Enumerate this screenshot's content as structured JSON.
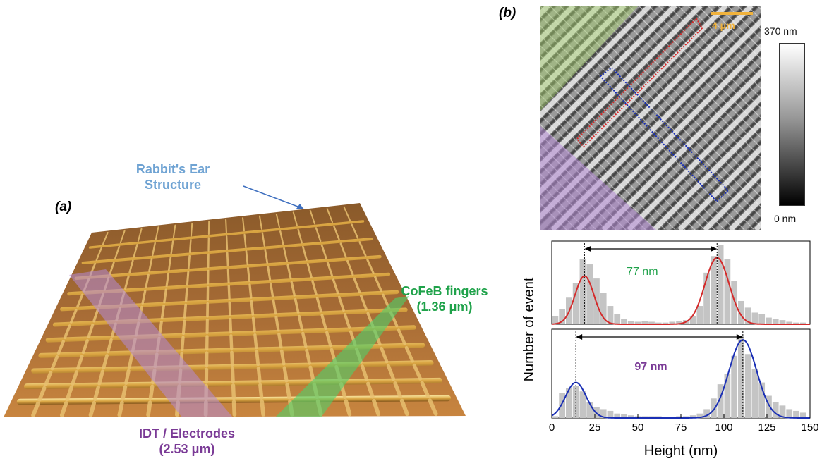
{
  "panel_a": {
    "label": "(a)",
    "annotations": {
      "rabbit_line1": "Rabbit's Ear",
      "rabbit_line2": "Structure",
      "cofeb_line1": "CoFeB fingers",
      "cofeb_line2": "(1.36 μm)",
      "idt_line1": "IDT / Electrodes",
      "idt_line2": "(2.53 μm)"
    }
  },
  "panel_b": {
    "label": "(b)",
    "scale_bar": "4 μm",
    "colorbar": {
      "max": "370 nm",
      "min": "0 nm"
    }
  },
  "colors": {
    "red_fit": "#d42a2a",
    "blue_fit": "#1a2fb5",
    "bars": "#c4c4c4",
    "annot_green": "#1fa24a",
    "annot_purple": "#7a3a96"
  },
  "chart_data": [
    {
      "type": "bar",
      "panel": "top histogram",
      "xlim": [
        0,
        150
      ],
      "bin_width": 4,
      "x": [
        2,
        6,
        10,
        14,
        18,
        22,
        26,
        30,
        34,
        38,
        42,
        46,
        50,
        54,
        58,
        62,
        66,
        70,
        74,
        78,
        82,
        86,
        90,
        94,
        98,
        102,
        106,
        110,
        114,
        118,
        122,
        126,
        130,
        134,
        138,
        142,
        146
      ],
      "values": [
        0.1,
        0.18,
        0.32,
        0.5,
        0.78,
        0.72,
        0.55,
        0.38,
        0.22,
        0.12,
        0.06,
        0.04,
        0.03,
        0.04,
        0.03,
        0.02,
        0.02,
        0.03,
        0.04,
        0.05,
        0.1,
        0.22,
        0.62,
        0.82,
        0.95,
        0.78,
        0.52,
        0.28,
        0.2,
        0.14,
        0.12,
        0.08,
        0.06,
        0.05,
        0.03,
        0.02,
        0.02
      ],
      "fit": {
        "color": "red",
        "peaks": [
          {
            "center": 19,
            "height": 0.58,
            "sigma": 5.5
          },
          {
            "center": 96,
            "height": 0.8,
            "sigma": 7
          }
        ]
      },
      "annotation": "77 nm",
      "arrow_between": [
        19,
        96
      ]
    },
    {
      "type": "bar",
      "panel": "bottom histogram",
      "xlim": [
        0,
        150
      ],
      "xticks": [
        0,
        25,
        50,
        75,
        100,
        125,
        150
      ],
      "x": [
        2,
        6,
        10,
        14,
        18,
        22,
        26,
        30,
        34,
        38,
        42,
        46,
        50,
        54,
        58,
        62,
        66,
        70,
        74,
        78,
        82,
        86,
        90,
        94,
        98,
        102,
        106,
        110,
        114,
        118,
        122,
        126,
        130,
        134,
        138,
        142,
        146
      ],
      "values": [
        0.02,
        0.28,
        0.34,
        0.36,
        0.3,
        0.18,
        0.12,
        0.1,
        0.08,
        0.05,
        0.04,
        0.03,
        0.02,
        0.02,
        0.02,
        0.02,
        0.01,
        0.01,
        0.02,
        0.02,
        0.03,
        0.05,
        0.1,
        0.22,
        0.38,
        0.5,
        0.7,
        0.92,
        0.72,
        0.55,
        0.4,
        0.25,
        0.18,
        0.14,
        0.1,
        0.08,
        0.06
      ],
      "fit": {
        "color": "blue",
        "peaks": [
          {
            "center": 14,
            "height": 0.4,
            "sigma": 6
          },
          {
            "center": 111,
            "height": 0.88,
            "sigma": 8
          }
        ]
      },
      "annotation": "97 nm",
      "arrow_between": [
        14,
        111
      ]
    }
  ],
  "axes": {
    "xlabel": "Height (nm)",
    "ylabel": "Number of event"
  }
}
